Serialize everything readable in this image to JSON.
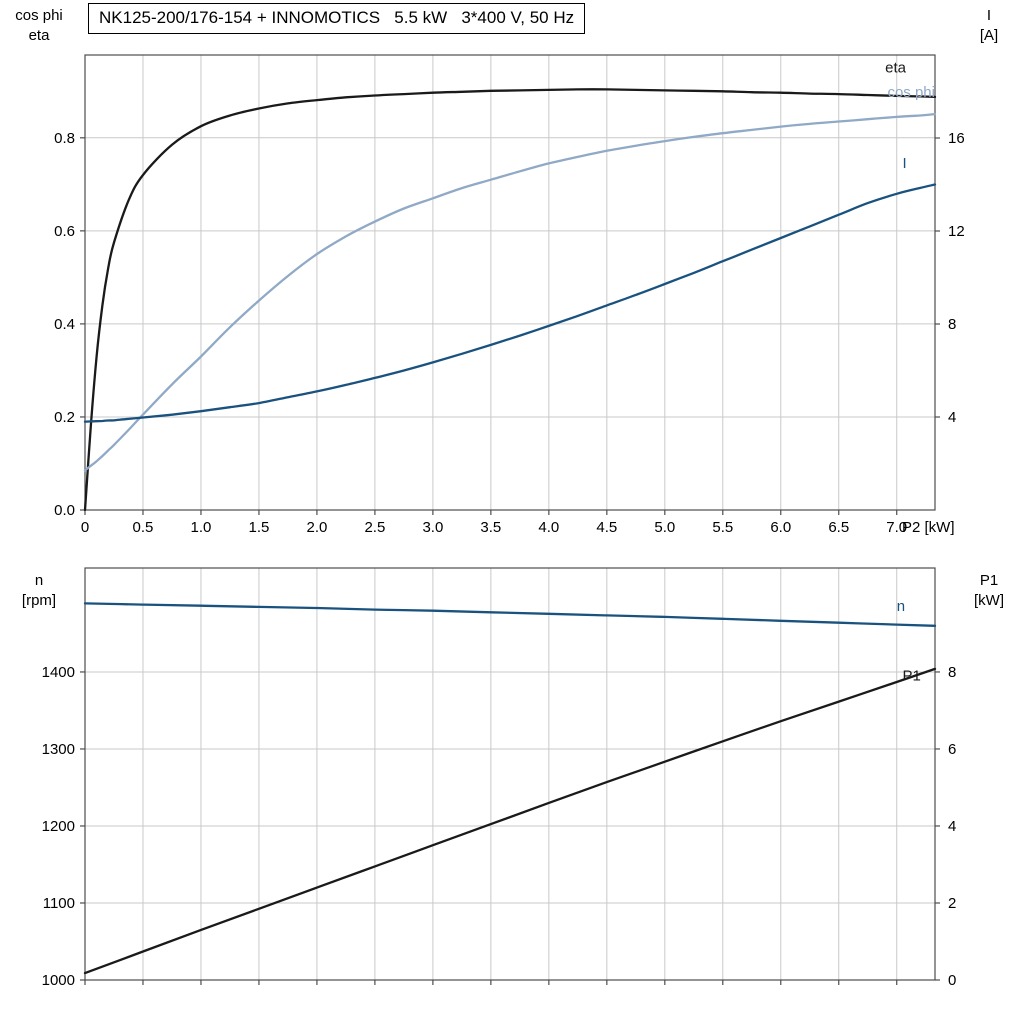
{
  "colors": {
    "black": "#1a1a1a",
    "dark_blue": "#1a527f",
    "light_blue": "#90a9c6",
    "grid": "#c9c9c9",
    "frame": "#4d4d4d",
    "text": "#000000",
    "background": "#ffffff"
  },
  "chart_data": [
    {
      "type": "line",
      "name": "motor-efficiency-current-chart",
      "title": "NK125-200/176-154 + INNOMOTICS   5.5 kW   3*400 V, 50 Hz",
      "grid": true,
      "legend_position": "curve-end-labels",
      "x_axis": {
        "label": "P2 [kW]",
        "min": 0,
        "max": 7.33,
        "tick_values": [
          0,
          0.5,
          1,
          1.5,
          2,
          2.5,
          3,
          3.5,
          4,
          4.5,
          5,
          5.5,
          6,
          6.5,
          7
        ],
        "tick_labels": [
          "0",
          "0.5",
          "1.0",
          "1.5",
          "2.0",
          "2.5",
          "3.0",
          "3.5",
          "4.0",
          "4.5",
          "5.0",
          "5.5",
          "6.0",
          "6.5",
          "7.0"
        ]
      },
      "left_axis": {
        "title_lines": [
          "cos phi",
          "eta"
        ],
        "min": 0,
        "max": 0.978,
        "tick_values": [
          0,
          0.2,
          0.4,
          0.6,
          0.8
        ],
        "tick_labels": [
          "0.0",
          "0.2",
          "0.4",
          "0.6",
          "0.8"
        ]
      },
      "right_axis": {
        "title_lines": [
          "I",
          "[A]"
        ],
        "min": 0,
        "max": 19.57,
        "tick_values": [
          4,
          8,
          12,
          16
        ],
        "tick_labels": [
          "4",
          "8",
          "12",
          "16"
        ]
      },
      "x": [
        0,
        0.05,
        0.1,
        0.15,
        0.2,
        0.25,
        0.375,
        0.5,
        0.75,
        1,
        1.25,
        1.5,
        1.75,
        2,
        2.25,
        2.5,
        2.75,
        3,
        3.25,
        3.5,
        3.75,
        4,
        4.25,
        4.5,
        4.75,
        5,
        5.25,
        5.5,
        5.75,
        6,
        6.25,
        6.5,
        6.75,
        7,
        7.2,
        7.33
      ],
      "series": [
        {
          "name": "eta",
          "axis": "left",
          "color_key": "black",
          "values": [
            0,
            0.18,
            0.33,
            0.44,
            0.52,
            0.575,
            0.665,
            0.72,
            0.785,
            0.825,
            0.848,
            0.863,
            0.874,
            0.881,
            0.887,
            0.891,
            0.894,
            0.897,
            0.899,
            0.901,
            0.902,
            0.903,
            0.904,
            0.904,
            0.903,
            0.902,
            0.901,
            0.9,
            0.898,
            0.897,
            0.895,
            0.894,
            0.892,
            0.89,
            0.889,
            0.888
          ],
          "label": {
            "text": "eta",
            "x": 6.9,
            "y": 0.94
          }
        },
        {
          "name": "cos phi",
          "axis": "left",
          "color_key": "light_blue",
          "values": [
            0.085,
            0.095,
            0.105,
            0.116,
            0.128,
            0.14,
            0.172,
            0.205,
            0.27,
            0.33,
            0.393,
            0.45,
            0.503,
            0.55,
            0.588,
            0.62,
            0.648,
            0.67,
            0.692,
            0.71,
            0.728,
            0.745,
            0.759,
            0.772,
            0.783,
            0.793,
            0.802,
            0.81,
            0.817,
            0.824,
            0.83,
            0.835,
            0.84,
            0.845,
            0.848,
            0.851
          ],
          "label": {
            "text": "cos phi",
            "x": 6.92,
            "y": 0.888
          }
        },
        {
          "name": "I",
          "axis": "right",
          "color_key": "dark_blue",
          "values": [
            3.8,
            3.81,
            3.82,
            3.83,
            3.85,
            3.86,
            3.92,
            3.98,
            4.1,
            4.25,
            4.42,
            4.6,
            4.85,
            5.1,
            5.38,
            5.68,
            6.0,
            6.35,
            6.72,
            7.1,
            7.5,
            7.92,
            8.35,
            8.8,
            9.25,
            9.72,
            10.2,
            10.7,
            11.2,
            11.7,
            12.2,
            12.7,
            13.2,
            13.6,
            13.85,
            14.0
          ],
          "label": {
            "text": "I",
            "x": 7.05,
            "y": 14.7
          }
        }
      ]
    },
    {
      "type": "line",
      "name": "motor-speed-power-chart",
      "title": "",
      "grid": true,
      "legend_position": "curve-end-labels",
      "x_axis": {
        "label": "",
        "min": 0,
        "max": 7.33,
        "tick_values": [
          0,
          0.5,
          1,
          1.5,
          2,
          2.5,
          3,
          3.5,
          4,
          4.5,
          5,
          5.5,
          6,
          6.5,
          7
        ],
        "tick_labels": []
      },
      "left_axis": {
        "title_lines": [
          "n",
          "[rpm]"
        ],
        "min": 1000,
        "max": 1535,
        "tick_values": [
          1000,
          1100,
          1200,
          1300,
          1400
        ],
        "tick_labels": [
          "1000",
          "1100",
          "1200",
          "1300",
          "1400"
        ]
      },
      "right_axis": {
        "title_lines": [
          "P1",
          "[kW]"
        ],
        "min": 0,
        "max": 10.7,
        "tick_values": [
          0,
          2,
          4,
          6,
          8
        ],
        "tick_labels": [
          "0",
          "2",
          "4",
          "6",
          "8"
        ]
      },
      "x": [
        0,
        0.5,
        1,
        1.5,
        2,
        2.5,
        3,
        3.5,
        4,
        4.5,
        5,
        5.5,
        6,
        6.5,
        7,
        7.33
      ],
      "series": [
        {
          "name": "n",
          "axis": "left",
          "color_key": "dark_blue",
          "values": [
            1489,
            1487.5,
            1486,
            1484.5,
            1483,
            1481,
            1479.5,
            1477.5,
            1475.5,
            1473.5,
            1471.5,
            1469,
            1466.5,
            1464,
            1461.5,
            1460
          ],
          "label": {
            "text": "n",
            "x": 7.0,
            "y": 1479
          }
        },
        {
          "name": "P1",
          "axis": "right",
          "color_key": "black",
          "values": [
            0.18,
            0.74,
            1.3,
            1.85,
            2.4,
            2.95,
            3.5,
            4.05,
            4.6,
            5.14,
            5.67,
            6.2,
            6.72,
            7.23,
            7.74,
            8.08
          ],
          "label": {
            "text": "P1",
            "x": 7.05,
            "y": 7.78
          }
        }
      ]
    }
  ]
}
